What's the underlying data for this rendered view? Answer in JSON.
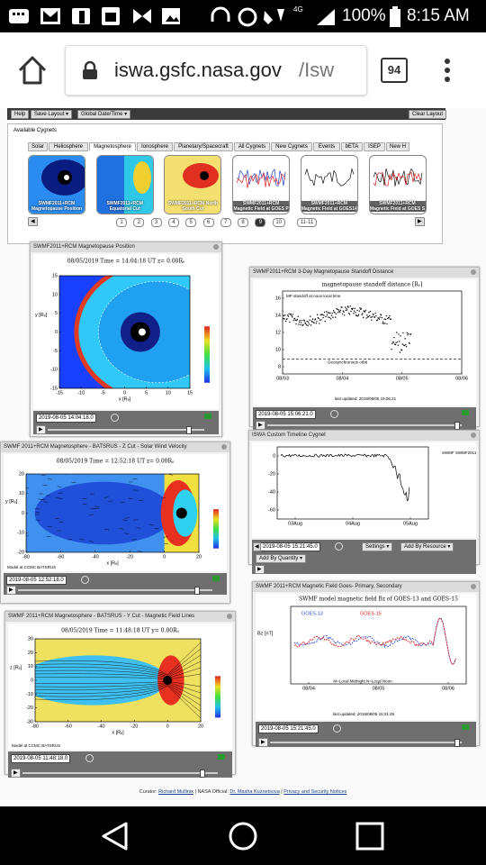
{
  "status_bar": {
    "network": "4G",
    "battery": "100%",
    "time": "8:15 AM"
  },
  "browser": {
    "host": "iswa.gsfc.nasa.gov",
    "path": "/Isw",
    "tab_count": "94"
  },
  "toolbar": {
    "buttons": [
      "Help",
      "Save Layout ▾",
      "Global Date/Time ▾"
    ],
    "clear": "Clear Layout"
  },
  "cygnets": {
    "title": "Available Cygnets",
    "tabs": [
      "Solar",
      "Heliosphere",
      "Magnetosphere",
      "Ionosphere",
      "Planetary/Spacecraft",
      "All Cygnets",
      "New Cygnets",
      "Events",
      "bETA",
      "ISEP",
      "New H"
    ],
    "thumbnails": [
      "SWMF2011+RCM Magnetopause Position",
      "SWMF2011+RCM Equatorial Cut",
      "SWMF2011+RCM North South Cut",
      "SWMF2011+RCM Magnetic Field at GOES P",
      "SWMF2011+RCM Magnetic Field at GOES14",
      "SWMF2011+RCM Magnetic Field at GOES S"
    ],
    "pages": [
      "1",
      "2",
      "3",
      "4",
      "5",
      "6",
      "7",
      "8",
      "9",
      "10",
      "11-11"
    ]
  },
  "windows": [
    {
      "title": "SWMF2011+RCM Magnetopause Position",
      "date": "2019-08-05 14:04:18.0",
      "plot": {
        "title": "08/05/2019 Time = 14:04:18 UT z= 0.00Rₑ",
        "yticks": [
          "15",
          "10",
          "5",
          "0",
          "-5",
          "-10",
          "-15"
        ],
        "xticks": [
          "-15",
          "-10",
          "-5",
          "0",
          "5",
          "10",
          "15"
        ],
        "xlabel": "x [Rₑ]",
        "ylabel": "y [Rₑ]"
      }
    },
    {
      "title": "SWMF2011+RCM 3-Day Magnetopause Standoff Distance",
      "date": "2019-08-05 15:06:21.0",
      "plot": {
        "title": "magnetopause standoff distance [Rₑ]",
        "subtitle": "MP standoff at noon local time",
        "yticks": [
          "16",
          "14",
          "12",
          "10",
          "8"
        ],
        "xticks": [
          "08/03",
          "08/04",
          "08/05",
          "08/06"
        ],
        "notes": [
          "Geosynchronous orbit",
          "last updated: 2019/08/05 15:06:21"
        ]
      }
    },
    {
      "title": "SWMF 2011+RCM Magnetosphere - BATSRUS - Z Cut - Solar Wind Velocity",
      "date": "2019-08-05 12:52:18.0",
      "plot": {
        "title": "08/05/2019 Time = 12:52:18 UT z= 0.00Rₑ",
        "yticks": [
          "20",
          "10",
          "0",
          "-10",
          "-20"
        ],
        "xticks": [
          "-80",
          "-60",
          "-40",
          "-20",
          "0",
          "20"
        ],
        "xlabel": "x [Rₑ]",
        "ylabel": "y [Rₑ]",
        "notes": [
          "Model at CCMC BATSRUS"
        ]
      }
    },
    {
      "title": "ISWA Custom Timeline Cygnet",
      "date": "2019-08-05 15:21:45.0",
      "plot": {
        "yticks": [
          "0",
          "-20",
          "-40",
          "-60"
        ],
        "xticks": [
          "03Aug",
          "04Aug",
          "05Aug"
        ],
        "notes": [
          "SWMF SWMF2011 Bz[T]"
        ]
      },
      "buttons": [
        "Settings ▾",
        "Add By Resource ▾",
        "Add By Quantity ▾"
      ]
    },
    {
      "title": "SWMF 2011+RCM Magnetosphere - BATSRUS - Y Cut - Magnetic Field Lines",
      "date": "2019-08-05 11:48:18.0",
      "plot": {
        "title": "08/05/2019 Time = 11:48:18 UT y= 0.00Rₑ",
        "yticks": [
          "30",
          "20",
          "10",
          "0",
          "-10",
          "-20",
          "-30"
        ],
        "xticks": [
          "-80",
          "-60",
          "-40",
          "-20",
          "0",
          "20"
        ],
        "xlabel": "x [Rₑ]",
        "ylabel": "z [Rₑ]",
        "notes": [
          "Model at CCMC BATSRUS"
        ]
      }
    },
    {
      "title": "SWMF 2011+RCM Magnetic Field Goes- Primary, Secondary",
      "date": "2019-08-05 15:21:45.0",
      "plot": {
        "title": "SWMF model magnetic field Bz of GOES-13 and GOES-15",
        "xticks": [
          "08/04",
          "08/05",
          "08/06"
        ],
        "ylabel": "Bz [nT]",
        "legend": [
          "GOES-13",
          "GOES-15"
        ],
        "notes": [
          "M=Local Midnight   N=Local Noon",
          "last updated: 2019/08/05 15:21:45"
        ]
      }
    }
  ],
  "footer": {
    "curator_label": "Curator:",
    "curator": "Richard Mullinix",
    "official_label": "| NASA Official:",
    "official": "Dr. Masha Kuznetsova",
    "privacy": "Privacy and Security Notices"
  }
}
